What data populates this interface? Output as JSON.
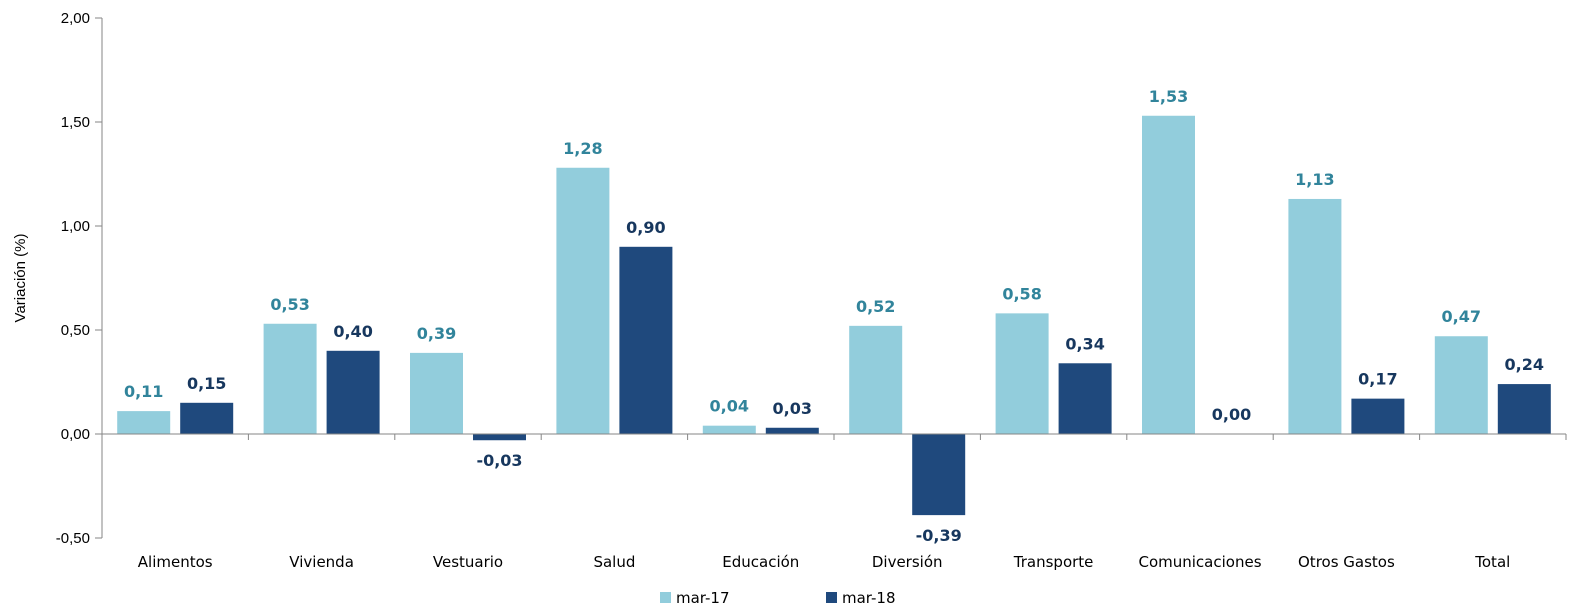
{
  "chart_data": {
    "type": "bar",
    "title": "",
    "xlabel": "",
    "ylabel": "Variación (%)",
    "ylim": [
      -0.5,
      2.0
    ],
    "yticks": [
      -0.5,
      0.0,
      0.5,
      1.0,
      1.5,
      2.0
    ],
    "ytick_labels": [
      "-0,50",
      "0,00",
      "0,50",
      "1,00",
      "1,50",
      "2,00"
    ],
    "grid": false,
    "legend_position": "bottom",
    "categories": [
      "Alimentos",
      "Vivienda",
      "Vestuario",
      "Salud",
      "Educación",
      "Diversión",
      "Transporte",
      "Comunicaciones",
      "Otros Gastos",
      "Total"
    ],
    "series": [
      {
        "name": "mar-17",
        "color": "#92CDDC",
        "label_color": "#31849B",
        "values": [
          0.11,
          0.53,
          0.39,
          1.28,
          0.04,
          0.52,
          0.58,
          1.53,
          1.13,
          0.47
        ],
        "labels": [
          "0,11",
          "0,53",
          "0,39",
          "1,28",
          "0,04",
          "0,52",
          "0,58",
          "1,53",
          "1,13",
          "0,47"
        ]
      },
      {
        "name": "mar-18",
        "color": "#1F497D",
        "label_color": "#17375E",
        "values": [
          0.15,
          0.4,
          -0.03,
          0.9,
          0.03,
          -0.39,
          0.34,
          0.0,
          0.17,
          0.24
        ],
        "labels": [
          "0,15",
          "0,40",
          "-0,03",
          "0,90",
          "0,03",
          "-0,39",
          "0,34",
          "0,00",
          "0,17",
          "0,24"
        ]
      }
    ]
  }
}
